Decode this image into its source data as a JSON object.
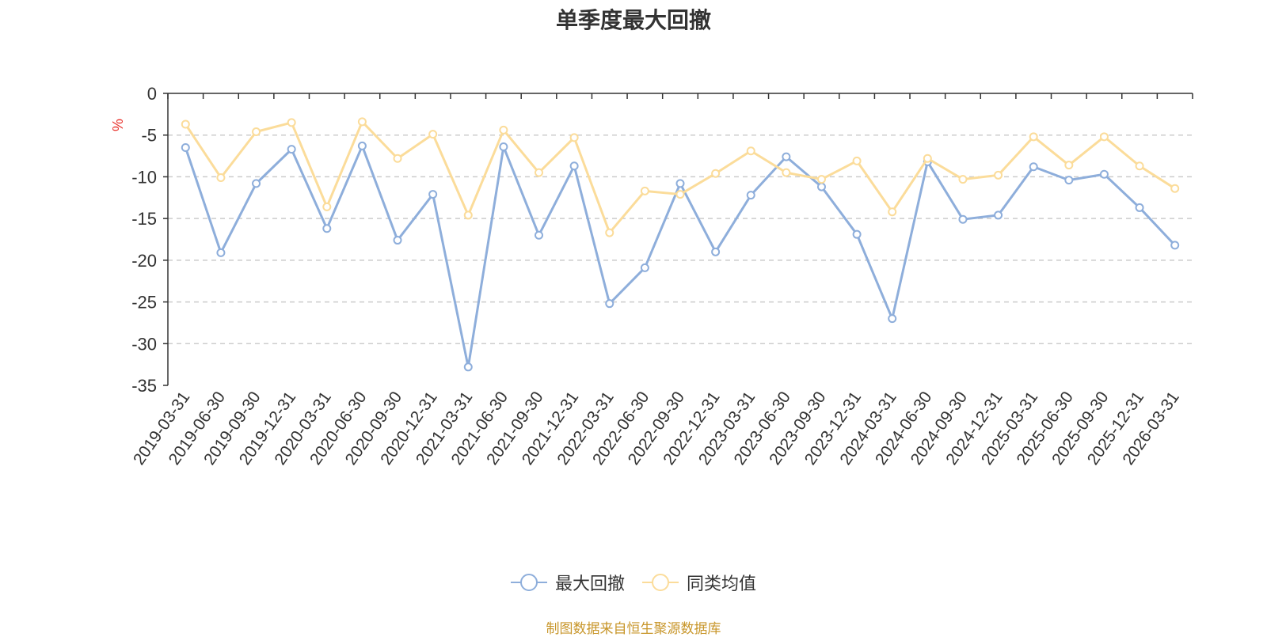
{
  "chart_data": {
    "type": "line",
    "title": "单季度最大回撤",
    "ylabel": "%",
    "ylim": [
      -35,
      0
    ],
    "yticks": [
      0,
      -5,
      -10,
      -15,
      -20,
      -25,
      -30,
      -35
    ],
    "grid": true,
    "legend_position": "bottom-center",
    "categories": [
      "2019-03-31",
      "2019-06-30",
      "2019-09-30",
      "2019-12-31",
      "2020-03-31",
      "2020-06-30",
      "2020-09-30",
      "2020-12-31",
      "2021-03-31",
      "2021-06-30",
      "2021-09-30",
      "2021-12-31",
      "2022-03-31",
      "2022-06-30",
      "2022-09-30",
      "2022-12-31",
      "2023-03-31",
      "2023-06-30",
      "2023-09-30",
      "2023-12-31",
      "2024-03-31",
      "2024-06-30",
      "2024-09-30",
      "2024-12-31",
      "2025-03-31",
      "2025-06-30",
      "2025-09-30",
      "2025-12-31",
      "2026-03-31"
    ],
    "series": [
      {
        "name": "最大回撤",
        "color": "#8eaedb",
        "values": [
          -6.5,
          -19.1,
          -10.8,
          -6.7,
          -16.2,
          -6.3,
          -17.6,
          -12.1,
          -32.8,
          -6.4,
          -17.0,
          -8.7,
          -25.2,
          -20.9,
          -10.8,
          -19.0,
          -12.2,
          -7.6,
          -11.2,
          -16.9,
          -27.0,
          -8.2,
          -15.1,
          -14.6,
          -8.8,
          -10.4,
          -9.7,
          -13.7,
          -18.2
        ]
      },
      {
        "name": "同类均值",
        "color": "#fbdc9a",
        "values": [
          -3.7,
          -10.1,
          -4.6,
          -3.5,
          -13.6,
          -3.4,
          -7.8,
          -4.9,
          -14.6,
          -4.4,
          -9.5,
          -5.3,
          -16.7,
          -11.7,
          -12.1,
          -9.6,
          -6.9,
          -9.5,
          -10.3,
          -8.1,
          -14.2,
          -7.8,
          -10.3,
          -9.8,
          -5.2,
          -8.6,
          -5.2,
          -8.7,
          -11.4
        ]
      }
    ]
  },
  "legend": {
    "items": [
      "最大回撤",
      "同类均值"
    ]
  },
  "footer": {
    "source": "制图数据来自恒生聚源数据库"
  }
}
